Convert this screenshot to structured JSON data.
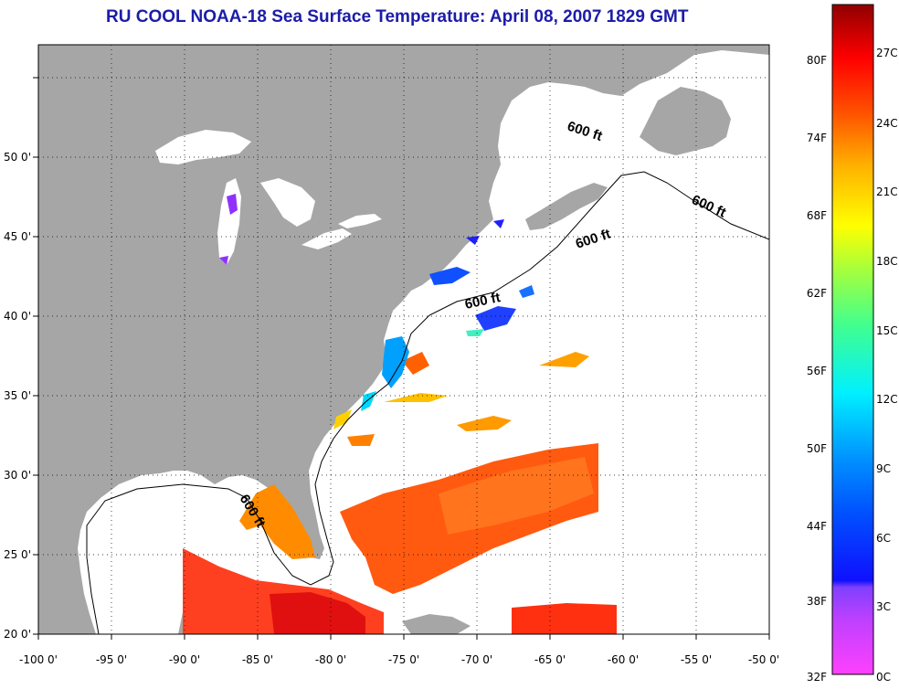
{
  "title": "RU COOL  NOAA-18  Sea Surface Temperature:  April 08, 2007 1829 GMT",
  "map": {
    "lon_range": [
      -100,
      -50
    ],
    "lat_range": [
      20,
      52.5
    ],
    "lon_ticks": [
      "-100 0'",
      "-95 0'",
      "-90 0'",
      "-85 0'",
      "-80 0'",
      "-75 0'",
      "-70 0'",
      "-65 0'",
      "-60 0'",
      "-55 0'",
      "-50 0'"
    ],
    "lat_ticks": [
      "20 0'",
      "25 0'",
      "30 0'",
      "35 0'",
      "40 0'",
      "45 0'",
      "50 0'"
    ],
    "grid": "dotted",
    "land_color": "#a6a6a6",
    "ocean_color": "#ffffff",
    "contour_label": "600 ft"
  },
  "colorbar": {
    "fahrenheit_labels": [
      "80F",
      "74F",
      "68F",
      "62F",
      "56F",
      "50F",
      "44F",
      "38F",
      "32F"
    ],
    "celsius_labels": [
      "27C",
      "24C",
      "21C",
      "18C",
      "15C",
      "12C",
      "9C",
      "6C",
      "3C",
      "0C"
    ],
    "colors": [
      "#ff40ff",
      "#a040ff",
      "#2020ff",
      "#0080ff",
      "#00e0ff",
      "#40ff80",
      "#c0ff00",
      "#ffff00",
      "#ffa000",
      "#ff4000",
      "#e00000",
      "#900000"
    ],
    "range_c": [
      0,
      28.5
    ]
  }
}
